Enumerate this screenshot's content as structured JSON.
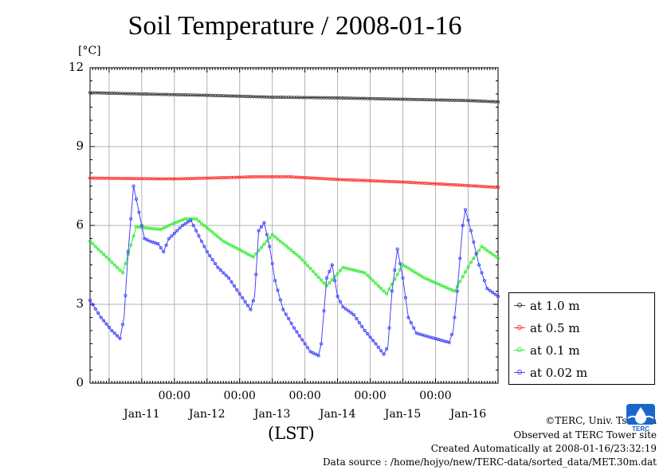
{
  "chart_data": {
    "type": "line",
    "title": "Soil Temperature / 2008-01-16",
    "ylabel": "[°C]",
    "xlabel": "(LST)",
    "ylim": [
      0,
      12
    ],
    "y_ticks": [
      "0",
      "3",
      "6",
      "9",
      "12"
    ],
    "x_range": [
      "2008-01-10 17:00",
      "2008-01-16 23:00"
    ],
    "x_time_labels": [
      "00:00",
      "00:00",
      "00:00",
      "00:00",
      "00:00"
    ],
    "x_date_labels": [
      "Jan-11",
      "Jan-12",
      "Jan-13",
      "Jan-14",
      "Jan-15",
      "Jan-16"
    ],
    "grid": true,
    "legend_position": "right",
    "series": [
      {
        "name": "at 1.0 m",
        "color": "#404040",
        "points": [
          [
            "2008-01-10 17:00",
            11.05
          ],
          [
            "2008-01-11 12:00",
            11.0
          ],
          [
            "2008-01-12 12:00",
            10.95
          ],
          [
            "2008-01-13 12:00",
            10.88
          ],
          [
            "2008-01-14 12:00",
            10.85
          ],
          [
            "2008-01-15 12:00",
            10.8
          ],
          [
            "2008-01-16 12:00",
            10.75
          ],
          [
            "2008-01-16 23:00",
            10.7
          ]
        ]
      },
      {
        "name": "at 0.5 m",
        "color": "#ff3333",
        "points": [
          [
            "2008-01-10 17:00",
            7.8
          ],
          [
            "2008-01-11 12:00",
            7.78
          ],
          [
            "2008-01-12 00:00",
            7.77
          ],
          [
            "2008-01-12 12:00",
            7.8
          ],
          [
            "2008-01-13 06:00",
            7.85
          ],
          [
            "2008-01-13 18:00",
            7.85
          ],
          [
            "2008-01-14 12:00",
            7.75
          ],
          [
            "2008-01-15 12:00",
            7.65
          ],
          [
            "2008-01-16 06:00",
            7.55
          ],
          [
            "2008-01-16 23:00",
            7.45
          ]
        ]
      },
      {
        "name": "at 0.1 m",
        "color": "#33ee33",
        "points": [
          [
            "2008-01-10 17:00",
            5.4
          ],
          [
            "2008-01-11 05:00",
            4.2
          ],
          [
            "2008-01-11 10:00",
            5.95
          ],
          [
            "2008-01-11 14:00",
            5.9
          ],
          [
            "2008-01-11 19:00",
            5.85
          ],
          [
            "2008-01-11 23:00",
            6.05
          ],
          [
            "2008-01-12 04:00",
            6.25
          ],
          [
            "2008-01-12 08:00",
            6.25
          ],
          [
            "2008-01-12 18:00",
            5.4
          ],
          [
            "2008-01-13 05:00",
            4.8
          ],
          [
            "2008-01-13 12:00",
            5.65
          ],
          [
            "2008-01-13 22:00",
            4.8
          ],
          [
            "2008-01-14 08:00",
            3.7
          ],
          [
            "2008-01-14 14:00",
            4.4
          ],
          [
            "2008-01-14 22:00",
            4.2
          ],
          [
            "2008-01-15 06:00",
            3.4
          ],
          [
            "2008-01-15 12:00",
            4.5
          ],
          [
            "2008-01-15 20:00",
            4.0
          ],
          [
            "2008-01-16 07:00",
            3.5
          ],
          [
            "2008-01-16 13:00",
            4.6
          ],
          [
            "2008-01-16 17:00",
            5.2
          ],
          [
            "2008-01-16 23:00",
            4.75
          ]
        ]
      },
      {
        "name": "at 0.02 m",
        "color": "#4444ff",
        "points": [
          [
            "2008-01-10 17:00",
            3.15
          ],
          [
            "2008-01-10 21:00",
            2.5
          ],
          [
            "2008-01-11 01:00",
            2.0
          ],
          [
            "2008-01-11 04:00",
            1.7
          ],
          [
            "2008-01-11 05:30",
            2.5
          ],
          [
            "2008-01-11 07:00",
            5.0
          ],
          [
            "2008-01-11 09:00",
            7.5
          ],
          [
            "2008-01-11 11:00",
            6.5
          ],
          [
            "2008-01-11 13:00",
            5.5
          ],
          [
            "2008-01-11 15:00",
            5.4
          ],
          [
            "2008-01-11 18:00",
            5.3
          ],
          [
            "2008-01-11 20:00",
            5.0
          ],
          [
            "2008-01-11 22:00",
            5.5
          ],
          [
            "2008-01-12 03:00",
            6.0
          ],
          [
            "2008-01-12 06:00",
            6.2
          ],
          [
            "2008-01-12 09:00",
            5.6
          ],
          [
            "2008-01-12 12:00",
            5.0
          ],
          [
            "2008-01-12 16:00",
            4.4
          ],
          [
            "2008-01-12 20:00",
            4.0
          ],
          [
            "2008-01-13 00:00",
            3.4
          ],
          [
            "2008-01-13 04:00",
            2.8
          ],
          [
            "2008-01-13 05:30",
            3.3
          ],
          [
            "2008-01-13 07:00",
            5.8
          ],
          [
            "2008-01-13 09:00",
            6.1
          ],
          [
            "2008-01-13 11:00",
            5.2
          ],
          [
            "2008-01-13 13:00",
            3.9
          ],
          [
            "2008-01-13 16:00",
            2.8
          ],
          [
            "2008-01-13 20:00",
            2.1
          ],
          [
            "2008-01-14 02:00",
            1.2
          ],
          [
            "2008-01-14 05:00",
            1.05
          ],
          [
            "2008-01-14 06:00",
            1.5
          ],
          [
            "2008-01-14 08:00",
            4.0
          ],
          [
            "2008-01-14 10:00",
            4.5
          ],
          [
            "2008-01-14 12:00",
            3.3
          ],
          [
            "2008-01-14 14:00",
            2.9
          ],
          [
            "2008-01-14 18:00",
            2.6
          ],
          [
            "2008-01-14 22:00",
            2.0
          ],
          [
            "2008-01-15 02:00",
            1.5
          ],
          [
            "2008-01-15 05:00",
            1.1
          ],
          [
            "2008-01-15 06:30",
            1.4
          ],
          [
            "2008-01-15 08:00",
            3.5
          ],
          [
            "2008-01-15 10:00",
            5.1
          ],
          [
            "2008-01-15 12:00",
            4.0
          ],
          [
            "2008-01-15 14:00",
            2.5
          ],
          [
            "2008-01-15 17:00",
            1.9
          ],
          [
            "2008-01-15 22:00",
            1.75
          ],
          [
            "2008-01-16 05:00",
            1.55
          ],
          [
            "2008-01-16 06:30",
            2.0
          ],
          [
            "2008-01-16 08:00",
            3.5
          ],
          [
            "2008-01-16 10:00",
            6.0
          ],
          [
            "2008-01-16 11:00",
            6.6
          ],
          [
            "2008-01-16 13:00",
            5.8
          ],
          [
            "2008-01-16 16:00",
            4.5
          ],
          [
            "2008-01-16 19:00",
            3.6
          ],
          [
            "2008-01-16 23:00",
            3.3
          ]
        ]
      }
    ]
  },
  "credits": {
    "copyright": "©TERC, Univ. Tsukuba",
    "observed": "Observed at TERC Tower site",
    "created": "Created Automatically at 2008-01-16/23:32:19",
    "source": "Data source : /home/hojyo/new/TERC-data/sorted_data/MET.30m.dat",
    "logo_text": "TERC"
  },
  "colors": {
    "axis": "#000000",
    "grid": "#b3b3b3",
    "logo": "#1a66cc"
  }
}
